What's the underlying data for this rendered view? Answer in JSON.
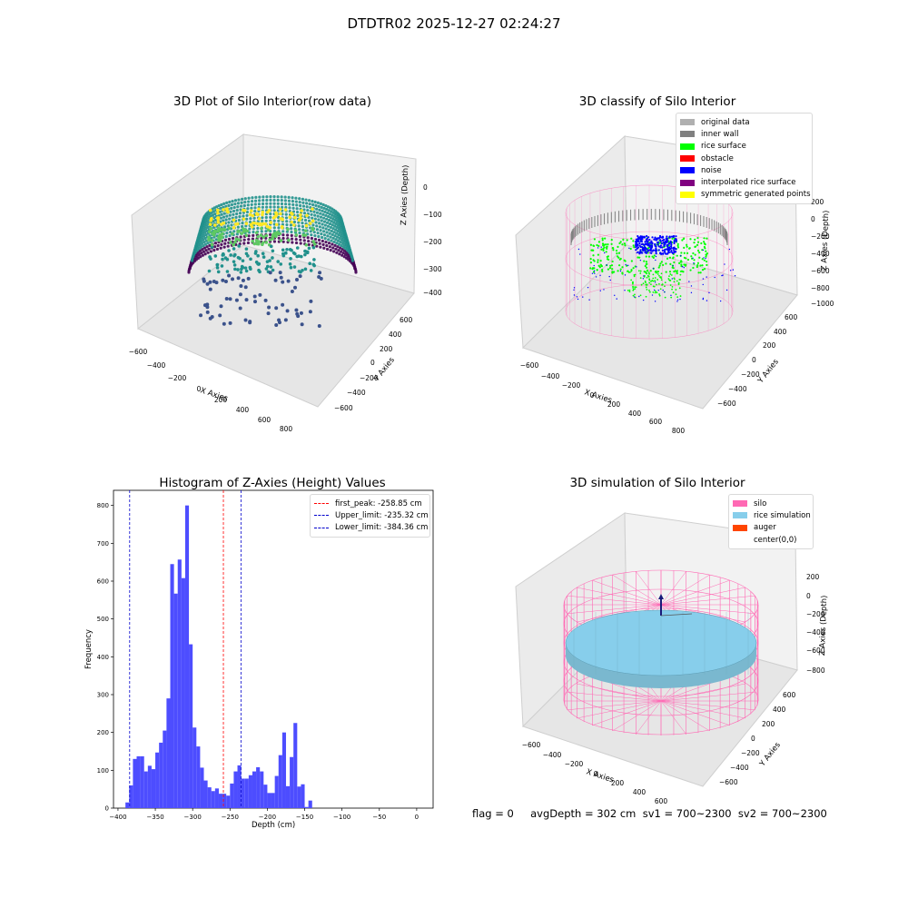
{
  "figure": {
    "title": "DTDTR02 2025-12-27 02:24:27",
    "footer": "flag = 0     avgDepth = 302 cm  sv1 = 700~2300  sv2 = 700~2300"
  },
  "colors": {
    "hist_bar": "#4d4dff",
    "first_peak": "#ff0000",
    "limits": "#0000cc",
    "silo": "#ff69b4",
    "rice_simulation": "#87ceeb",
    "auger": "#ff4500",
    "original_data": "#b0b0b0",
    "inner_wall": "#808080",
    "rice_surface": "#00ff00",
    "obstacle": "#ff0000",
    "noise": "#0000ff",
    "interpolated_rice_surface": "#800080",
    "symmetric_generated_points": "#ffff00"
  },
  "chart_data": [
    {
      "type": "scatter",
      "projection": "3d",
      "title": "3D Plot of Silo Interior(row data)",
      "xlabel": "X Axies",
      "ylabel": "Y Axies",
      "zlabel": "Z Axies (Depth)",
      "xticks": [
        "−600",
        "−400",
        "−200",
        "0",
        "200",
        "400",
        "600",
        "800"
      ],
      "yticks": [
        "−600",
        "−400",
        "−200",
        "0",
        "200",
        "400",
        "600"
      ],
      "zticks": [
        "0",
        "−100",
        "−200",
        "−300",
        "−400"
      ],
      "xlim": [
        -600,
        900
      ],
      "ylim": [
        -700,
        700
      ],
      "zlim": [
        -450,
        0
      ],
      "colormap": "viridis"
    },
    {
      "type": "scatter",
      "projection": "3d",
      "title": "3D classify of Silo Interior",
      "xlabel": "X Axies",
      "ylabel": "Y Axies",
      "zlabel": "Z Axies (Depth)",
      "xticks": [
        "−600",
        "−400",
        "−200",
        "0",
        "200",
        "400",
        "600",
        "800"
      ],
      "yticks": [
        "−600",
        "−400",
        "−200",
        "0",
        "200",
        "400",
        "600"
      ],
      "zticks": [
        "200",
        "0",
        "−200",
        "−400",
        "−600",
        "−800",
        "−1000"
      ],
      "legend": {
        "placement": "upper-right",
        "entries": [
          "original data",
          "inner wall",
          "rice surface",
          "obstacle",
          "noise",
          "interpolated rice surface",
          "symmetric generated points"
        ]
      }
    },
    {
      "type": "bar",
      "title": "Histogram of Z-Axies (Height) Values",
      "xlabel": "Depth (cm)",
      "ylabel": "Frequency",
      "xlim": [
        -406,
        22
      ],
      "ylim": [
        0,
        840
      ],
      "xticks": [
        -400,
        -350,
        -300,
        -250,
        -200,
        -150,
        -100,
        -50,
        0
      ],
      "yticks": [
        0,
        100,
        200,
        300,
        400,
        500,
        600,
        700,
        800
      ],
      "bin_width": 5,
      "bin_start": -390,
      "values": [
        15,
        60,
        130,
        137,
        137,
        97,
        112,
        103,
        147,
        173,
        205,
        290,
        645,
        567,
        657,
        608,
        800,
        433,
        213,
        163,
        107,
        73,
        55,
        45,
        52,
        38,
        38,
        33,
        65,
        97,
        113,
        78,
        78,
        87,
        97,
        108,
        97,
        62,
        40,
        40,
        85,
        140,
        200,
        58,
        135,
        225,
        57,
        63,
        3,
        20
      ],
      "vlines": [
        {
          "name": "first_peak",
          "label": "first_peak: -258.85 cm",
          "x": -258.85
        },
        {
          "name": "upper_limit",
          "label": "Upper_limit: -235.32 cm",
          "x": -235.32
        },
        {
          "name": "lower_limit",
          "label": "Lower_limit: -384.36 cm",
          "x": -384.36
        }
      ],
      "legend": {
        "placement": "upper-right"
      }
    },
    {
      "type": "surface",
      "projection": "3d",
      "title": "3D simulation of Silo Interior",
      "xlabel": "X Axies",
      "ylabel": "Y Axies",
      "zlabel": "Z Axies (Depth)",
      "xticks": [
        "−600",
        "−400",
        "−200",
        "0",
        "200",
        "400",
        "600"
      ],
      "yticks": [
        "−600",
        "−400",
        "−200",
        "0",
        "200",
        "400",
        "600"
      ],
      "zticks": [
        "200",
        "0",
        "−200",
        "−400",
        "−600",
        "−800"
      ],
      "legend": {
        "placement": "upper-right",
        "entries": [
          "silo",
          "rice simulation",
          "auger",
          "center(0,0)"
        ]
      }
    }
  ]
}
